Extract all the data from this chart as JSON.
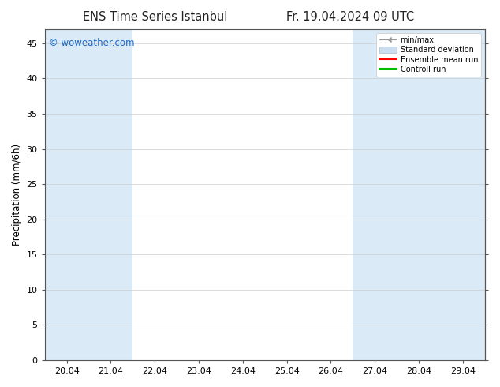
{
  "title_left": "ENS Time Series Istanbul",
  "title_right": "Fr. 19.04.2024 09 UTC",
  "ylabel": "Precipitation (mm/6h)",
  "watermark": "© woweather.com",
  "watermark_color": "#1a6ac7",
  "ylim": [
    0,
    47
  ],
  "yticks": [
    0,
    5,
    10,
    15,
    20,
    25,
    30,
    35,
    40,
    45
  ],
  "xtick_labels": [
    "20.04",
    "21.04",
    "22.04",
    "23.04",
    "24.04",
    "25.04",
    "26.04",
    "27.04",
    "28.04",
    "29.04"
  ],
  "xtick_positions": [
    0,
    1,
    2,
    3,
    4,
    5,
    6,
    7,
    8,
    9
  ],
  "x_min": -0.5,
  "x_max": 9.5,
  "shaded_bands": [
    {
      "x_start": -0.5,
      "x_end": 0.5,
      "color": "#daeaf7"
    },
    {
      "x_start": 0.5,
      "x_end": 1.5,
      "color": "#daeaf7"
    },
    {
      "x_start": 6.5,
      "x_end": 7.5,
      "color": "#daeaf7"
    },
    {
      "x_start": 7.5,
      "x_end": 8.5,
      "color": "#daeaf7"
    },
    {
      "x_start": 8.5,
      "x_end": 9.5,
      "color": "#daeaf7"
    }
  ],
  "legend_items": [
    {
      "label": "min/max",
      "color": "#aaaaaa",
      "lw": 1
    },
    {
      "label": "Standard deviation",
      "color": "#ccddf0",
      "lw": 6
    },
    {
      "label": "Ensemble mean run",
      "color": "#ff0000",
      "lw": 1.5
    },
    {
      "label": "Controll run",
      "color": "#00bb00",
      "lw": 1.5
    }
  ],
  "bg_color": "#ffffff",
  "plot_bg_color": "#ffffff",
  "grid_color": "#cccccc",
  "title_fontsize": 10.5,
  "axis_fontsize": 8.5,
  "tick_fontsize": 8,
  "watermark_fontsize": 8.5
}
